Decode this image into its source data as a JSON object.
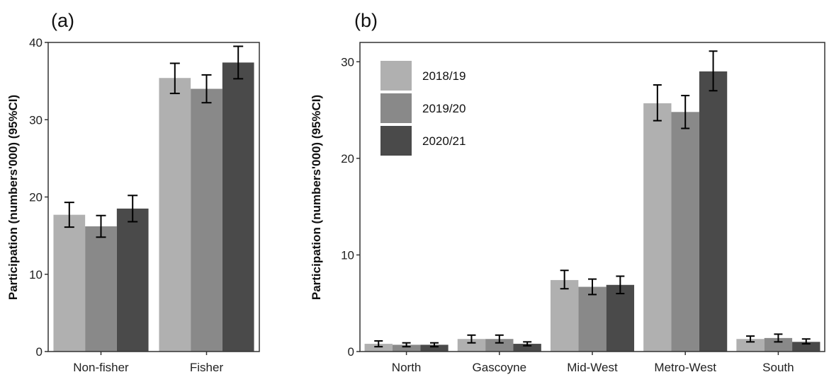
{
  "chart_data": [
    {
      "panel_label": "(a)",
      "type": "bar",
      "ylabel": "Participation (numbers'000) (95%CI)",
      "xlabel": "",
      "ylim": [
        0,
        40
      ],
      "yticks": [
        0,
        10,
        20,
        30,
        40
      ],
      "categories": [
        "Non-fisher",
        "Fisher"
      ],
      "series": [
        {
          "name": "2018/19",
          "color": "#b0b0b0",
          "values": [
            17.7,
            35.4
          ],
          "ci_low": [
            16.1,
            33.4
          ],
          "ci_high": [
            19.3,
            37.3
          ]
        },
        {
          "name": "2019/20",
          "color": "#898989",
          "values": [
            16.2,
            34.0
          ],
          "ci_low": [
            14.8,
            32.2
          ],
          "ci_high": [
            17.6,
            35.8
          ]
        },
        {
          "name": "2020/21",
          "color": "#4a4a4a",
          "values": [
            18.5,
            37.4
          ],
          "ci_low": [
            16.8,
            35.3
          ],
          "ci_high": [
            20.2,
            39.5
          ]
        }
      ],
      "grid": false,
      "legend": "none"
    },
    {
      "panel_label": "(b)",
      "type": "bar",
      "ylabel": "Participation (numbers'000) (95%CI)",
      "xlabel": "",
      "ylim": [
        0,
        32
      ],
      "yticks": [
        0,
        10,
        20,
        30
      ],
      "categories": [
        "North",
        "Gascoyne",
        "Mid-West",
        "Metro-West",
        "South"
      ],
      "series": [
        {
          "name": "2018/19",
          "color": "#b0b0b0",
          "values": [
            0.8,
            1.3,
            7.4,
            25.7,
            1.3
          ],
          "ci_low": [
            0.5,
            0.9,
            6.5,
            23.9,
            1.0
          ],
          "ci_high": [
            1.1,
            1.7,
            8.4,
            27.6,
            1.6
          ]
        },
        {
          "name": "2019/20",
          "color": "#898989",
          "values": [
            0.7,
            1.3,
            6.7,
            24.8,
            1.4
          ],
          "ci_low": [
            0.5,
            0.9,
            5.9,
            23.1,
            1.0
          ],
          "ci_high": [
            0.9,
            1.7,
            7.5,
            26.5,
            1.8
          ]
        },
        {
          "name": "2020/21",
          "color": "#4a4a4a",
          "values": [
            0.7,
            0.8,
            6.9,
            29.0,
            1.0
          ],
          "ci_low": [
            0.5,
            0.6,
            6.0,
            27.0,
            0.8
          ],
          "ci_high": [
            0.9,
            1.0,
            7.8,
            31.1,
            1.3
          ]
        }
      ],
      "grid": false,
      "legend": "top-left"
    }
  ]
}
